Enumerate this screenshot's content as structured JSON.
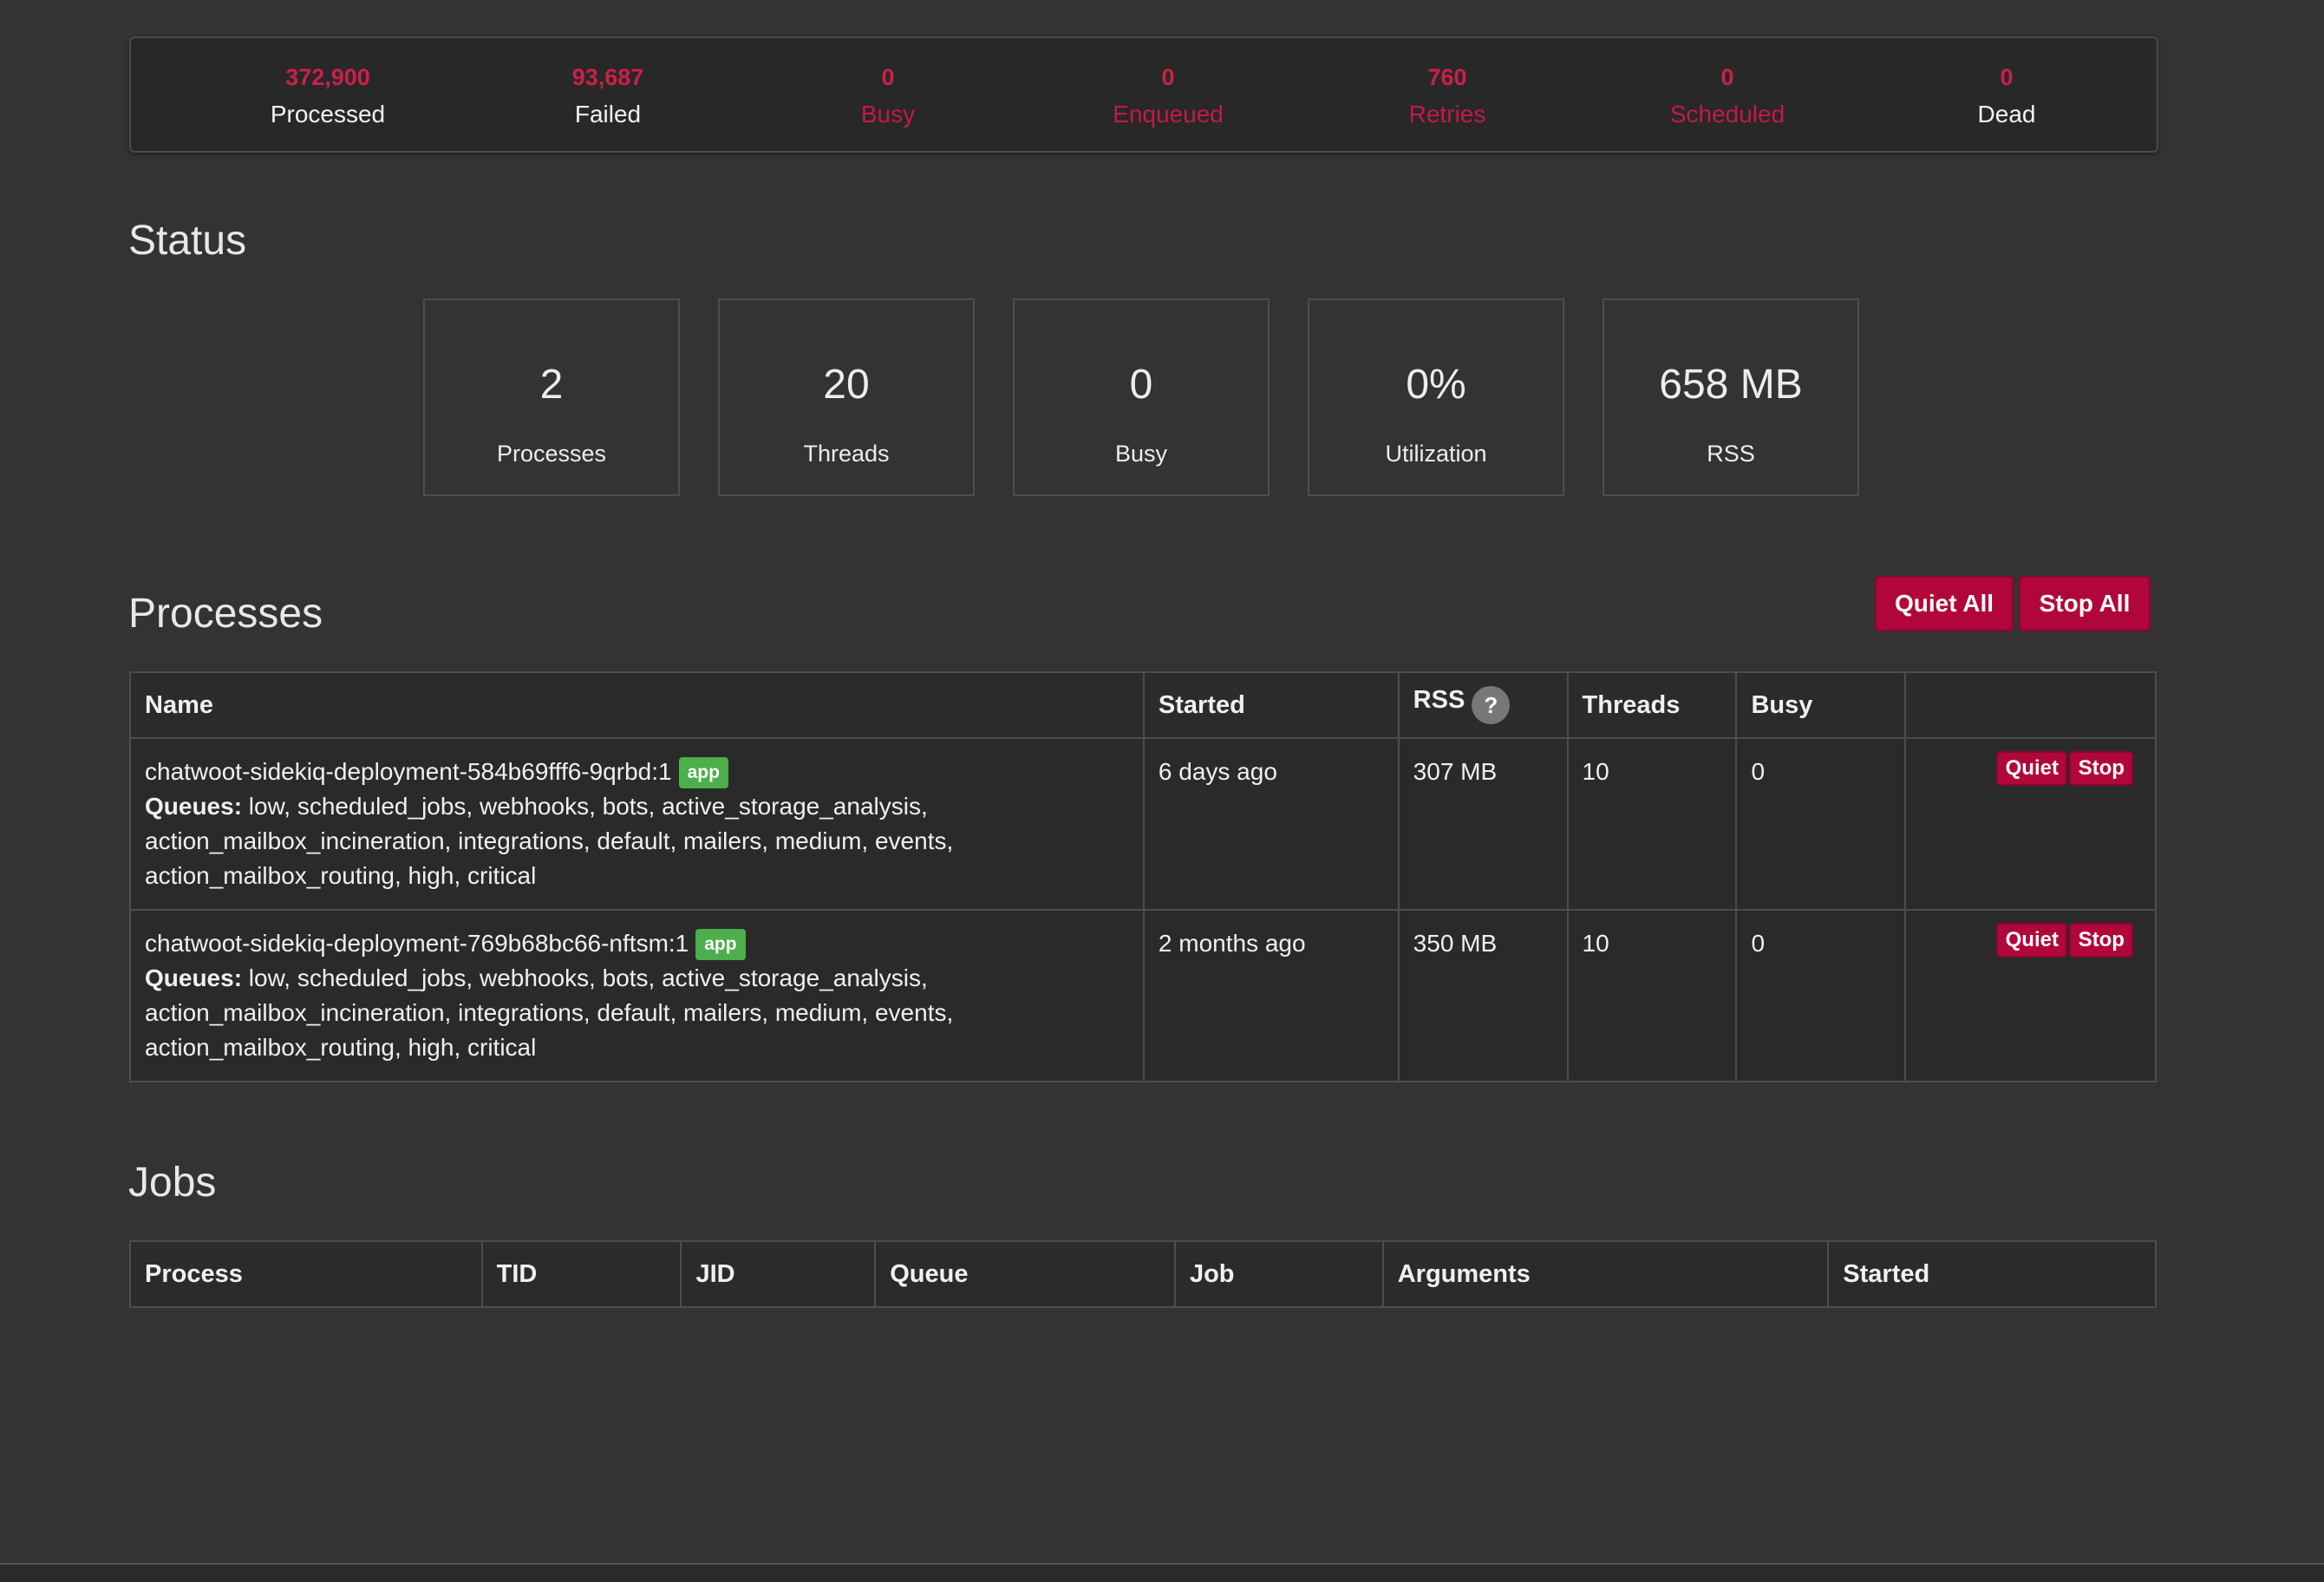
{
  "summary": [
    {
      "value": "372,900",
      "label": "Processed",
      "label_color": "white"
    },
    {
      "value": "93,687",
      "label": "Failed",
      "label_color": "white"
    },
    {
      "value": "0",
      "label": "Busy",
      "label_color": "red"
    },
    {
      "value": "0",
      "label": "Enqueued",
      "label_color": "red"
    },
    {
      "value": "760",
      "label": "Retries",
      "label_color": "red"
    },
    {
      "value": "0",
      "label": "Scheduled",
      "label_color": "red"
    },
    {
      "value": "0",
      "label": "Dead",
      "label_color": "white"
    }
  ],
  "status": {
    "title": "Status",
    "boxes": [
      {
        "value": "2",
        "label": "Processes"
      },
      {
        "value": "20",
        "label": "Threads"
      },
      {
        "value": "0",
        "label": "Busy"
      },
      {
        "value": "0%",
        "label": "Utilization"
      },
      {
        "value": "658 MB",
        "label": "RSS"
      }
    ]
  },
  "processes": {
    "title": "Processes",
    "quiet_all": "Quiet All",
    "stop_all": "Stop All",
    "headers": {
      "name": "Name",
      "started": "Started",
      "rss": "RSS",
      "rss_help": "?",
      "threads": "Threads",
      "busy": "Busy"
    },
    "queues_label": "Queues:",
    "rows": [
      {
        "name": "chatwoot-sidekiq-deployment-584b69fff6-9qrbd:1",
        "tag": "app",
        "queues_line1": " low, scheduled_jobs, webhooks, bots, active_storage_analysis,",
        "queues_line2": "action_mailbox_incineration, integrations, default, mailers, medium, events,",
        "queues_line3": "action_mailbox_routing, high, critical",
        "started": "6 days ago",
        "rss": "307 MB",
        "threads": "10",
        "busy": "0",
        "quiet": "Quiet",
        "stop": "Stop"
      },
      {
        "name": "chatwoot-sidekiq-deployment-769b68bc66-nftsm:1",
        "tag": "app",
        "queues_line1": " low, scheduled_jobs, webhooks, bots, active_storage_analysis,",
        "queues_line2": "action_mailbox_incineration, integrations, default, mailers, medium, events,",
        "queues_line3": "action_mailbox_routing, high, critical",
        "started": "2 months ago",
        "rss": "350 MB",
        "threads": "10",
        "busy": "0",
        "quiet": "Quiet",
        "stop": "Stop"
      }
    ]
  },
  "jobs": {
    "title": "Jobs",
    "headers": {
      "process": "Process",
      "tid": "TID",
      "jid": "JID",
      "queue": "Queue",
      "job": "Job",
      "arguments": "Arguments",
      "started": "Started"
    }
  }
}
